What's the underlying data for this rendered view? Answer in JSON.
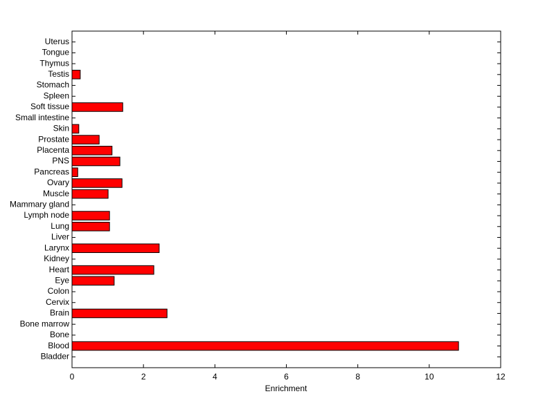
{
  "chart_data": {
    "type": "barh",
    "xlabel": "Enrichment",
    "categories": [
      "Bladder",
      "Blood",
      "Bone",
      "Bone marrow",
      "Brain",
      "Cervix",
      "Colon",
      "Eye",
      "Heart",
      "Kidney",
      "Larynx",
      "Liver",
      "Lung",
      "Lymph node",
      "Mammary gland",
      "Muscle",
      "Ovary",
      "Pancreas",
      "PNS",
      "Placenta",
      "Prostate",
      "Skin",
      "Small intestine",
      "Soft tissue",
      "Spleen",
      "Stomach",
      "Testis",
      "Thymus",
      "Tongue",
      "Uterus"
    ],
    "values": [
      0,
      10.82,
      0,
      0,
      2.66,
      0,
      0,
      1.18,
      2.29,
      0,
      2.44,
      0,
      1.05,
      1.05,
      0,
      1.01,
      1.4,
      0.16,
      1.34,
      1.12,
      0.76,
      0.19,
      0,
      1.42,
      0,
      0,
      0.23,
      0,
      0,
      0
    ],
    "color": "#ff0000",
    "xlim": [
      0,
      12
    ],
    "xticks": [
      0,
      2,
      4,
      6,
      8,
      10,
      12
    ]
  }
}
